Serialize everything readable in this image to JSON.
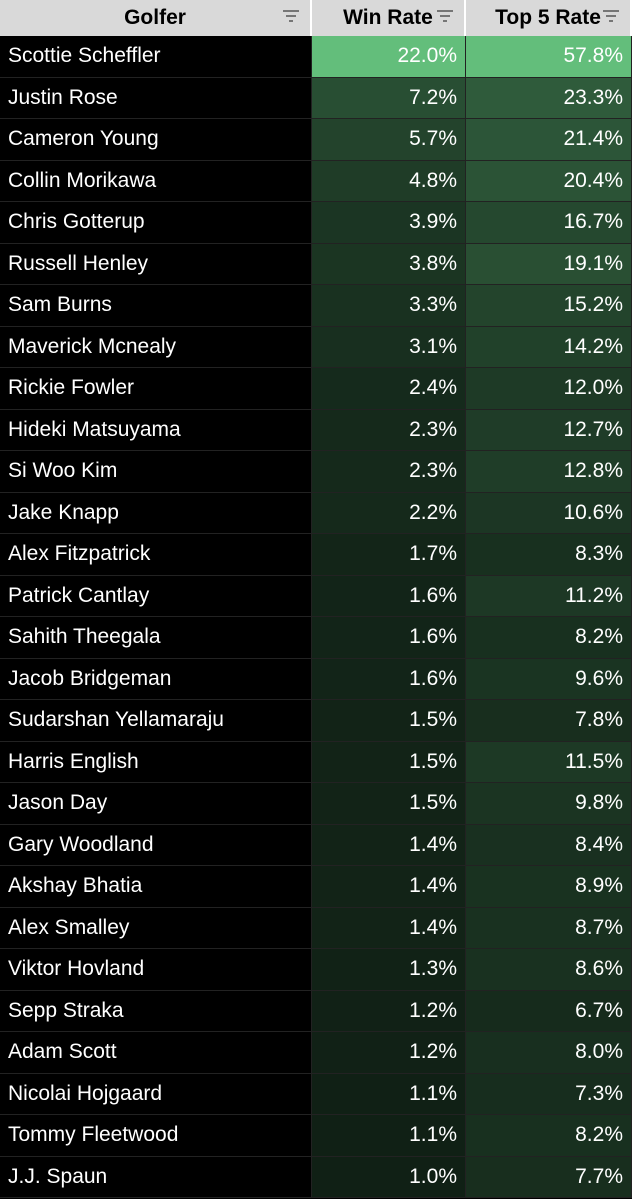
{
  "table": {
    "columns": [
      "Golfer",
      "Win Rate",
      "Top 5 Rate"
    ],
    "rows": [
      [
        "Scottie Scheffler",
        "22.0%",
        "57.8%"
      ],
      [
        "Justin Rose",
        "7.2%",
        "23.3%"
      ],
      [
        "Cameron Young",
        "5.7%",
        "21.4%"
      ],
      [
        "Collin Morikawa",
        "4.8%",
        "20.4%"
      ],
      [
        "Chris Gotterup",
        "3.9%",
        "16.7%"
      ],
      [
        "Russell Henley",
        "3.8%",
        "19.1%"
      ],
      [
        "Sam Burns",
        "3.3%",
        "15.2%"
      ],
      [
        "Maverick Mcnealy",
        "3.1%",
        "14.2%"
      ],
      [
        "Rickie Fowler",
        "2.4%",
        "12.0%"
      ],
      [
        "Hideki Matsuyama",
        "2.3%",
        "12.7%"
      ],
      [
        "Si Woo Kim",
        "2.3%",
        "12.8%"
      ],
      [
        "Jake Knapp",
        "2.2%",
        "10.6%"
      ],
      [
        "Alex Fitzpatrick",
        "1.7%",
        "8.3%"
      ],
      [
        "Patrick Cantlay",
        "1.6%",
        "11.2%"
      ],
      [
        "Sahith Theegala",
        "1.6%",
        "8.2%"
      ],
      [
        "Jacob Bridgeman",
        "1.6%",
        "9.6%"
      ],
      [
        "Sudarshan Yellamaraju",
        "1.5%",
        "7.8%"
      ],
      [
        "Harris English",
        "1.5%",
        "11.5%"
      ],
      [
        "Jason Day",
        "1.5%",
        "9.8%"
      ],
      [
        "Gary Woodland",
        "1.4%",
        "8.4%"
      ],
      [
        "Akshay Bhatia",
        "1.4%",
        "8.9%"
      ],
      [
        "Alex Smalley",
        "1.4%",
        "8.7%"
      ],
      [
        "Viktor Hovland",
        "1.3%",
        "8.6%"
      ],
      [
        "Sepp Straka",
        "1.2%",
        "6.7%"
      ],
      [
        "Adam Scott",
        "1.2%",
        "8.0%"
      ],
      [
        "Nicolai Hojgaard",
        "1.1%",
        "7.3%"
      ],
      [
        "Tommy Fleetwood",
        "1.1%",
        "8.2%"
      ],
      [
        "J.J. Spaun",
        "1.0%",
        "7.7%"
      ]
    ]
  }
}
